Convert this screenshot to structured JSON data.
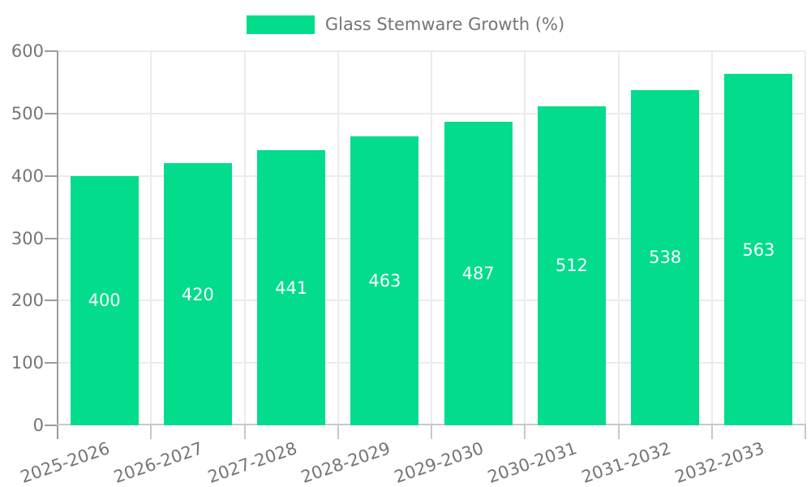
{
  "chart_data": {
    "type": "bar",
    "title": "Glass Stemware Growth (%)",
    "legend": {
      "label": "Glass Stemware Growth (%)",
      "position": "top"
    },
    "categories": [
      "2025-2026",
      "2026-2027",
      "2027-2028",
      "2028-2029",
      "2029-2030",
      "2030-2031",
      "2031-2032",
      "2032-2033"
    ],
    "series": [
      {
        "name": "Glass Stemware Growth (%)",
        "values": [
          400,
          420,
          441,
          463,
          487,
          512,
          538,
          563
        ]
      }
    ],
    "value_labels": [
      "400",
      "420",
      "441",
      "463",
      "487",
      "512",
      "538",
      "563"
    ],
    "xlabel": "",
    "ylabel": "",
    "ylim": [
      0,
      600
    ],
    "yticks": [
      "0",
      "100",
      "200",
      "300",
      "400",
      "500",
      "600"
    ],
    "grid": true,
    "colors": {
      "bar": "#03DC8C",
      "value_label": "#ffffff",
      "axis_text": "#757575",
      "gridline": "#ebebeb",
      "axis_line": "#9b9b9b",
      "baseline": "#c8c8c8",
      "background": "#ffffff"
    }
  }
}
